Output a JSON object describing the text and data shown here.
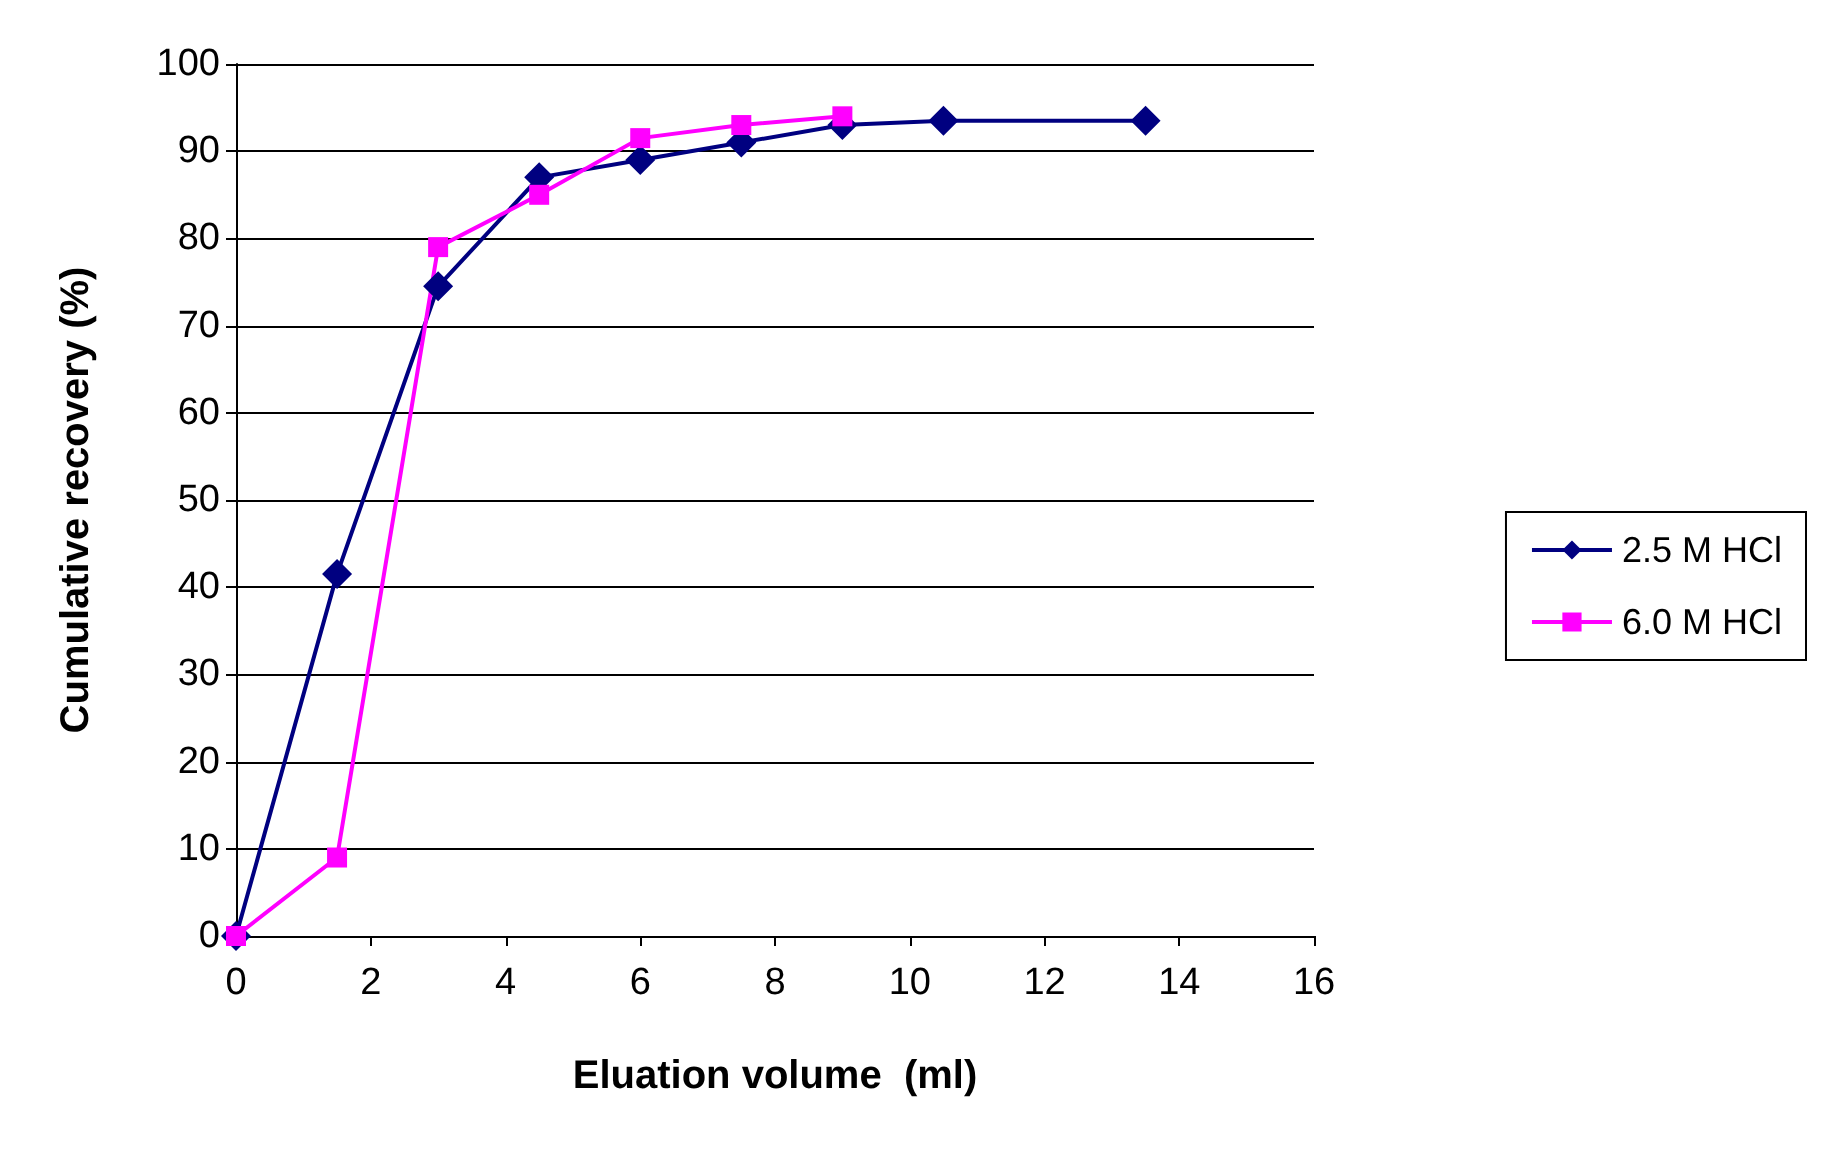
{
  "chart_data": {
    "type": "line",
    "xlabel": "Eluation volume  (ml)",
    "ylabel": "Cumulative recovery (%)",
    "xlim": [
      0,
      16
    ],
    "xticks": [
      0,
      2,
      4,
      6,
      8,
      10,
      12,
      14,
      16
    ],
    "ylim": [
      0,
      100
    ],
    "yticks": [
      0,
      10,
      20,
      30,
      40,
      50,
      60,
      70,
      80,
      90,
      100
    ],
    "grid": "y",
    "legend": "right",
    "line_style": "solid",
    "series": [
      {
        "name": "2.5 M HCl",
        "color": "#000080",
        "marker": "diamond",
        "x": [
          0,
          1.5,
          3,
          4.5,
          6,
          7.5,
          9,
          10.5,
          13.5
        ],
        "values": [
          0,
          41.5,
          74.5,
          87,
          89,
          91,
          93,
          93.5,
          93.5
        ]
      },
      {
        "name": "6.0 M HCl",
        "color": "#ff00ff",
        "marker": "square",
        "x": [
          0,
          1.5,
          3,
          4.5,
          6,
          7.5,
          9
        ],
        "values": [
          0,
          9,
          79,
          85,
          91.5,
          93,
          94
        ]
      }
    ]
  }
}
